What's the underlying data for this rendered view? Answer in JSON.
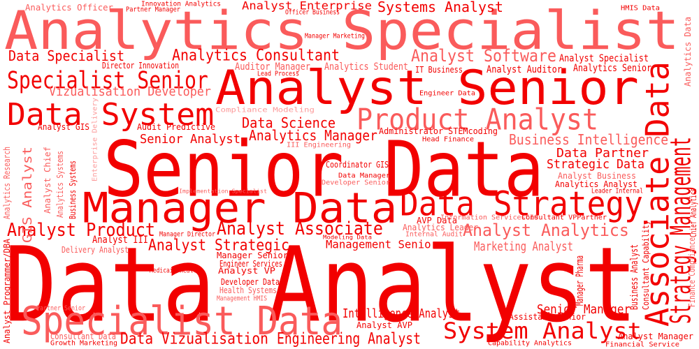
{
  "colors": {
    "background": "#ffffff",
    "strong": "#f20000",
    "medium": "#fa5b5b",
    "light": "#fc9a9a"
  },
  "words": [
    {
      "text": "Data Analyst",
      "color": "strong"
    },
    {
      "text": "Analytics Specialist",
      "color": "medium"
    },
    {
      "text": "Senior Data",
      "color": "strong"
    },
    {
      "text": "Analyst Senior",
      "color": "strong"
    },
    {
      "text": "Manager Data",
      "color": "strong"
    },
    {
      "text": "Specialist Data",
      "color": "medium"
    },
    {
      "text": "Data System",
      "color": "strong"
    },
    {
      "text": "Data Strategy",
      "color": "strong"
    },
    {
      "text": "Associate Data",
      "color": "strong"
    },
    {
      "text": "Product Analyst",
      "color": "medium"
    },
    {
      "text": "Strategy Management",
      "color": "strong"
    },
    {
      "text": "Specialist Senior",
      "color": "strong"
    },
    {
      "text": "System Analyst",
      "color": "strong"
    },
    {
      "text": "Analyst Associate",
      "color": "strong"
    },
    {
      "text": "Analyst Product",
      "color": "strong"
    },
    {
      "text": "Analyst Analytics",
      "color": "medium"
    },
    {
      "text": "Analyst Strategic",
      "color": "strong"
    },
    {
      "text": "Engineering Analyst",
      "color": "strong"
    },
    {
      "text": "Data Vizualisation",
      "color": "strong"
    },
    {
      "text": "Analytics Consultant",
      "color": "strong"
    },
    {
      "text": "Analyst Software",
      "color": "medium"
    },
    {
      "text": "Systems Analyst",
      "color": "strong"
    },
    {
      "text": "Analyst Enterprise",
      "color": "strong"
    },
    {
      "text": "Data Specialist",
      "color": "strong"
    },
    {
      "text": "Vizualisation Developer",
      "color": "medium"
    },
    {
      "text": "Data Science",
      "color": "strong"
    },
    {
      "text": "Analytics Manager",
      "color": "strong"
    },
    {
      "text": "Senior Analyst",
      "color": "strong"
    },
    {
      "text": "Business Intelligence",
      "color": "medium"
    },
    {
      "text": "Data Partner",
      "color": "strong"
    },
    {
      "text": "Strategic Data",
      "color": "strong"
    },
    {
      "text": "Management Senior",
      "color": "strong"
    },
    {
      "text": "Marketing Analyst",
      "color": "medium"
    },
    {
      "text": "Intelligence Analyst",
      "color": "strong"
    },
    {
      "text": "Senior Manager",
      "color": "strong"
    },
    {
      "text": "GIS Analyst",
      "color": "medium"
    },
    {
      "text": "Analytics Officer",
      "color": "medium"
    },
    {
      "text": "Innovation Analytics",
      "color": "strong"
    },
    {
      "text": "Partner Manager",
      "color": "strong"
    },
    {
      "text": "Officer Business",
      "color": "strong"
    },
    {
      "text": "HMIS Data",
      "color": "strong"
    },
    {
      "text": "Manager Marketing",
      "color": "strong"
    },
    {
      "text": "Analyst Specialist",
      "color": "strong"
    },
    {
      "text": "Director Innovation",
      "color": "strong"
    },
    {
      "text": "Auditor Manager",
      "color": "medium"
    },
    {
      "text": "Analytics Student",
      "color": "medium"
    },
    {
      "text": "IT Business",
      "color": "strong"
    },
    {
      "text": "Analyst Auditor",
      "color": "strong"
    },
    {
      "text": "Analytics Senior",
      "color": "strong"
    },
    {
      "text": "Lead Process",
      "color": "strong"
    },
    {
      "text": "Engineer Data",
      "color": "strong"
    },
    {
      "text": "Compliance Modeling",
      "color": "light"
    },
    {
      "text": "Analyst GIS",
      "color": "strong"
    },
    {
      "text": "Audit Predictive",
      "color": "strong"
    },
    {
      "text": "Administrator STEMcoding",
      "color": "strong"
    },
    {
      "text": "Head Finance",
      "color": "strong"
    },
    {
      "text": "III Engineering",
      "color": "medium"
    },
    {
      "text": "Coordinator GIS",
      "color": "strong"
    },
    {
      "text": "Data Manager",
      "color": "strong"
    },
    {
      "text": "Developer Senior",
      "color": "medium"
    },
    {
      "text": "Analyst Business",
      "color": "medium"
    },
    {
      "text": "Analytics Analyst",
      "color": "strong"
    },
    {
      "text": "Leader Internal",
      "color": "strong"
    },
    {
      "text": "Implementation Specialist",
      "color": "medium"
    },
    {
      "text": "AVP Data",
      "color": "strong"
    },
    {
      "text": "Information ServicesCIO",
      "color": "medium"
    },
    {
      "text": "Consultant VPPartner",
      "color": "strong"
    },
    {
      "text": "Analytics Leader",
      "color": "medium"
    },
    {
      "text": "Internal Audit",
      "color": "medium"
    },
    {
      "text": "Modeling Data",
      "color": "strong"
    },
    {
      "text": "Manager Director",
      "color": "strong"
    },
    {
      "text": "Analyst III",
      "color": "strong"
    },
    {
      "text": "Delivery Analyst",
      "color": "medium"
    },
    {
      "text": "Manager Senior",
      "color": "strong"
    },
    {
      "text": "Engineer Services",
      "color": "strong"
    },
    {
      "text": "Medicaid Health",
      "color": "strong"
    },
    {
      "text": "Analyst VP",
      "color": "strong"
    },
    {
      "text": "Developer Data",
      "color": "strong"
    },
    {
      "text": "Health Systems",
      "color": "medium"
    },
    {
      "text": "Management HMIS",
      "color": "medium"
    },
    {
      "text": "Manager Pharma",
      "color": "strong"
    },
    {
      "text": "Partner Senior",
      "color": "medium"
    },
    {
      "text": "Analyst AVP",
      "color": "strong"
    },
    {
      "text": "Assistant Senior",
      "color": "strong"
    },
    {
      "text": "Consultant Data",
      "color": "medium"
    },
    {
      "text": "Growth Marketing",
      "color": "strong"
    },
    {
      "text": "Capability Analytics",
      "color": "strong"
    },
    {
      "text": "Analyst Manager",
      "color": "strong"
    },
    {
      "text": "Financial Service",
      "color": "strong"
    },
    {
      "text": "Analytics Research",
      "color": "medium"
    },
    {
      "text": "Analyst Chief",
      "color": "medium"
    },
    {
      "text": "Analytics Systems",
      "color": "medium"
    },
    {
      "text": "Business Systems",
      "color": "strong"
    },
    {
      "text": "Enterprise Delivery",
      "color": "light"
    },
    {
      "text": "Analyst Programmer/DBA",
      "color": "strong"
    },
    {
      "text": "Analytics Data",
      "color": "medium"
    },
    {
      "text": "Chief Analytics",
      "color": "strong"
    },
    {
      "text": "Finance Compliance",
      "color": "medium"
    },
    {
      "text": "Consultant Capability",
      "color": "strong"
    },
    {
      "text": "Business Analyst",
      "color": "strong"
    }
  ]
}
